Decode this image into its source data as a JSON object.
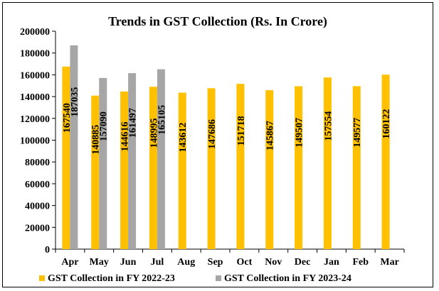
{
  "chart_data": {
    "type": "bar",
    "title": "Trends in GST Collection (Rs. In Crore)",
    "xlabel": "",
    "ylabel": "",
    "ylim": [
      0,
      200000
    ],
    "yticks": [
      0,
      20000,
      40000,
      60000,
      80000,
      100000,
      120000,
      140000,
      160000,
      180000,
      200000
    ],
    "categories": [
      "Apr",
      "May",
      "Jun",
      "Jul",
      "Aug",
      "Sep",
      "Oct",
      "Nov",
      "Dec",
      "Jan",
      "Feb",
      "Mar"
    ],
    "series": [
      {
        "name": "GST Collection in FY 2022-23",
        "color": "#FFC000",
        "values": [
          167540,
          140885,
          144616,
          148995,
          143612,
          147686,
          151718,
          145867,
          149507,
          157554,
          149577,
          160122
        ]
      },
      {
        "name": "GST Collection in FY 2023-24",
        "color": "#A6A6A6",
        "values": [
          187035,
          157090,
          161497,
          165105,
          null,
          null,
          null,
          null,
          null,
          null,
          null,
          null
        ]
      }
    ],
    "data_labels": "vertical, inside bars",
    "legend": "bottom",
    "grid": false
  }
}
